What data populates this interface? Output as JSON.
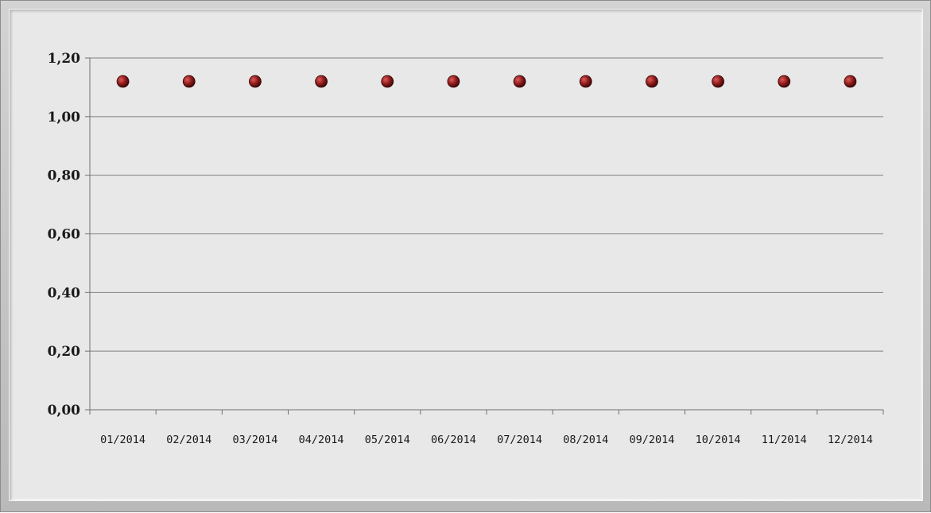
{
  "chart_data": {
    "type": "line",
    "title": "",
    "xlabel": "",
    "ylabel": "",
    "categories": [
      "01/2014",
      "02/2014",
      "03/2014",
      "04/2014",
      "05/2014",
      "06/2014",
      "07/2014",
      "08/2014",
      "09/2014",
      "10/2014",
      "11/2014",
      "12/2014"
    ],
    "series": [
      {
        "values": [
          1.12,
          1.12,
          1.12,
          1.12,
          1.12,
          1.12,
          1.12,
          1.12,
          1.12,
          1.12,
          1.12,
          1.12
        ],
        "line_color": "#4a6aa0",
        "marker_color": "#8b1a1a"
      }
    ],
    "ylim": [
      0,
      1.2
    ],
    "yticks": [
      "0,00",
      "0,20",
      "0,40",
      "0,60",
      "0,80",
      "1,00",
      "1,20"
    ],
    "grid": true,
    "legend": "none",
    "colors": {
      "gridline": "#7f7f7f",
      "plot_background": "#e8e8e8"
    }
  }
}
